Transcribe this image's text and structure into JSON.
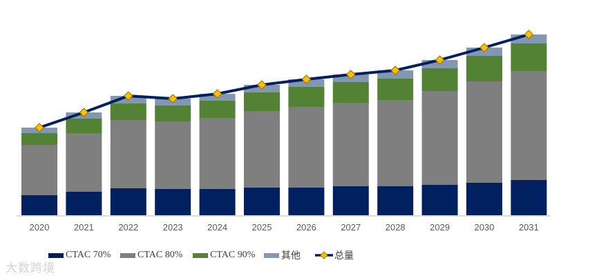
{
  "chart_data": {
    "type": "bar",
    "stacked": true,
    "title": "",
    "xlabel": "",
    "ylabel": "",
    "units": "relative (no y-axis shown)",
    "categories": [
      "2020",
      "2021",
      "2022",
      "2023",
      "2024",
      "2025",
      "2026",
      "2027",
      "2028",
      "2029",
      "2030",
      "2031"
    ],
    "series": [
      {
        "name": "CTAC 70%",
        "color": "#002060",
        "values": [
          30,
          35,
          40,
          39,
          39,
          41,
          41,
          43,
          43,
          45,
          48,
          52
        ]
      },
      {
        "name": "CTAC 80%",
        "color": "#7f7f7f",
        "values": [
          73,
          85,
          99,
          98,
          103,
          111,
          117,
          121,
          125,
          136,
          147,
          158
        ]
      },
      {
        "name": "CTAC 90%",
        "color": "#548235",
        "values": [
          17,
          21,
          24,
          23,
          25,
          27,
          29,
          30,
          31,
          33,
          37,
          40
        ]
      },
      {
        "name": "其他",
        "color": "#8497b0",
        "values": [
          8,
          9,
          11,
          10,
          10,
          11,
          11,
          11,
          12,
          12,
          12,
          13
        ]
      }
    ],
    "line": {
      "name": "总量",
      "color": "#002060",
      "marker_color": "#ffc000",
      "values": [
        128,
        150,
        174,
        170,
        177,
        190,
        198,
        205,
        211,
        226,
        244,
        263
      ]
    },
    "ylim": [
      0,
      275
    ],
    "grid": false,
    "legend_position": "bottom"
  },
  "watermark": "大数跨境"
}
